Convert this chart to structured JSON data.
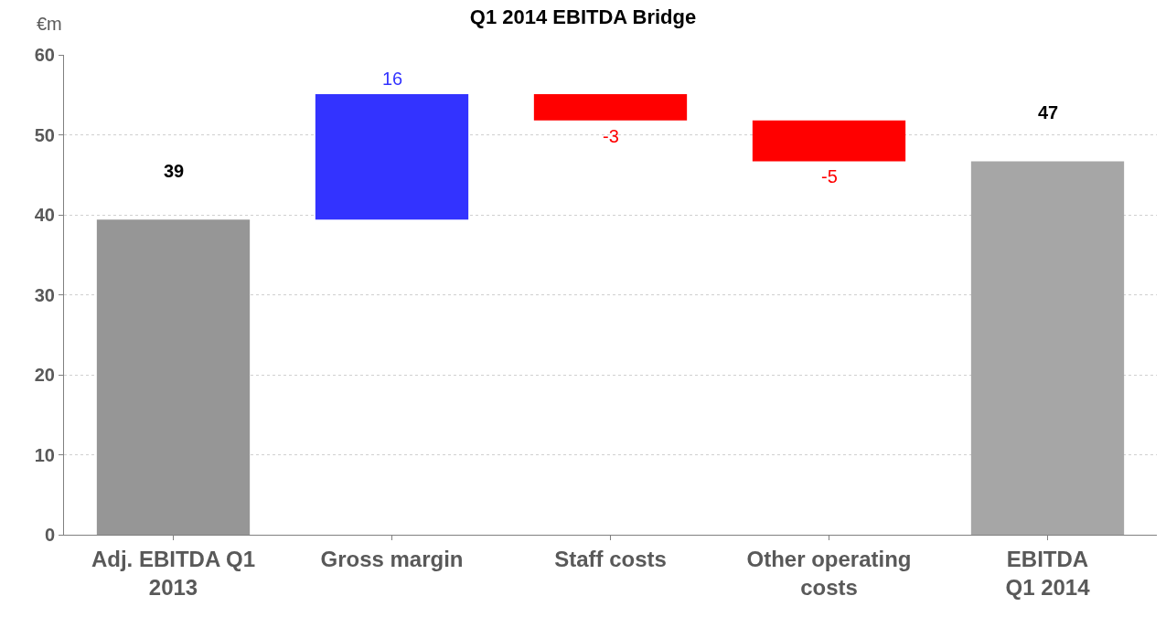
{
  "chart_data": {
    "type": "bar",
    "title": "Q1 2014 EBITDA Bridge",
    "ylabel": "€m",
    "categories": [
      "Adj. EBITDA Q1\n2013",
      "Gross margin",
      "Staff costs",
      "Other operating\ncosts",
      "EBITDA\nQ1 2014"
    ],
    "values": [
      39.4,
      15.7,
      -3.3,
      -5.1,
      46.7
    ],
    "base": [
      0,
      39.4,
      55.1,
      51.8,
      0
    ],
    "colors": [
      "#969696",
      "#3333ff",
      "#ff0000",
      "#ff0000",
      "#a6a6a6"
    ],
    "value_labels": [
      "39",
      "16",
      "-3",
      "-5",
      "47"
    ],
    "ylim": [
      0,
      60
    ],
    "yticks": [
      0,
      10,
      20,
      30,
      40,
      50,
      60
    ],
    "grid": "y"
  }
}
